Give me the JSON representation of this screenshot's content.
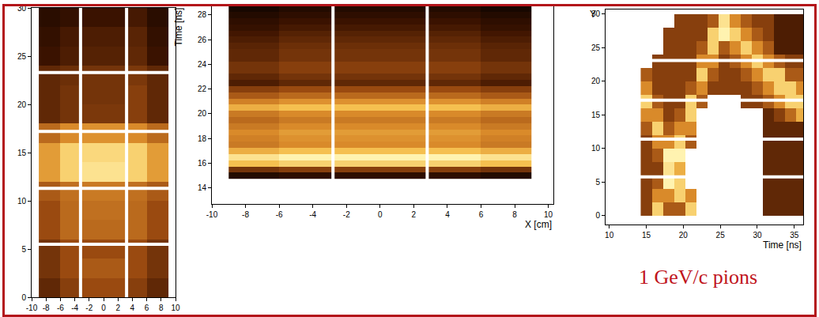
{
  "chart_data": [
    {
      "type": "heatmap",
      "x": [
        -7.5,
        -4.5,
        -1.5,
        1.5,
        4.5,
        7.5
      ],
      "y": [
        1,
        3,
        5,
        7,
        9,
        11,
        13,
        15,
        17,
        19,
        21,
        23,
        25,
        27,
        29
      ],
      "z": [
        [
          0.35,
          0.45,
          0.5,
          0.5,
          0.45,
          0.35
        ],
        [
          0.4,
          0.5,
          0.55,
          0.55,
          0.5,
          0.4
        ],
        [
          0.4,
          0.5,
          0.5,
          0.5,
          0.5,
          0.4
        ],
        [
          0.5,
          0.6,
          0.6,
          0.6,
          0.6,
          0.5
        ],
        [
          0.5,
          0.6,
          0.62,
          0.62,
          0.6,
          0.5
        ],
        [
          0.55,
          0.62,
          0.65,
          0.65,
          0.62,
          0.55
        ],
        [
          0.75,
          0.9,
          0.95,
          0.95,
          0.9,
          0.75
        ],
        [
          0.75,
          0.9,
          0.92,
          0.92,
          0.9,
          0.75
        ],
        [
          0.6,
          0.7,
          0.72,
          0.72,
          0.7,
          0.6
        ],
        [
          0.35,
          0.4,
          0.42,
          0.42,
          0.45,
          0.35
        ],
        [
          0.35,
          0.4,
          0.4,
          0.4,
          0.45,
          0.35
        ],
        [
          0.35,
          0.38,
          0.4,
          0.4,
          0.42,
          0.35
        ],
        [
          0.25,
          0.3,
          0.32,
          0.32,
          0.35,
          0.25
        ],
        [
          0.22,
          0.28,
          0.3,
          0.3,
          0.33,
          0.22
        ],
        [
          0.18,
          0.22,
          0.25,
          0.25,
          0.28,
          0.18
        ]
      ],
      "zlim": [
        0,
        1
      ],
      "xlim": [
        -10,
        10
      ],
      "xticks": [
        -10,
        -8,
        -6,
        -4,
        -2,
        0,
        2,
        4,
        6,
        8,
        10
      ],
      "ylim": [
        0,
        30
      ],
      "yticks": [
        0,
        5,
        10,
        15,
        20,
        25,
        30
      ],
      "grid": false,
      "dividers": {
        "x": [
          -3.2,
          3.2
        ],
        "y": [
          5.5,
          11.3,
          17.2,
          23.3
        ]
      }
    },
    {
      "type": "heatmap",
      "x_label": "X [cm]",
      "y_label": "Time [ns]",
      "x": [
        -7.5,
        -4.5,
        -1.5,
        1.5,
        4.5,
        7.5
      ],
      "y": [
        15,
        15.5,
        16,
        16.5,
        17,
        17.5,
        18,
        18.5,
        19,
        19.5,
        20,
        20.5,
        21,
        21.5,
        22,
        22.5,
        23,
        23.5,
        24,
        24.5,
        25,
        25.5,
        26,
        26.5,
        27,
        27.5,
        28,
        28.5
      ],
      "z": [
        [
          0.15,
          0.2,
          0.2,
          0.2,
          0.2,
          0.15
        ],
        [
          0.4,
          0.45,
          0.45,
          0.45,
          0.45,
          0.4
        ],
        [
          0.85,
          0.9,
          0.9,
          0.9,
          0.9,
          0.85
        ],
        [
          0.95,
          1.0,
          1.0,
          1.0,
          1.0,
          0.95
        ],
        [
          0.8,
          0.85,
          0.85,
          0.85,
          0.85,
          0.8
        ],
        [
          0.65,
          0.7,
          0.7,
          0.7,
          0.7,
          0.65
        ],
        [
          0.67,
          0.72,
          0.72,
          0.72,
          0.72,
          0.67
        ],
        [
          0.7,
          0.75,
          0.75,
          0.75,
          0.75,
          0.7
        ],
        [
          0.65,
          0.7,
          0.7,
          0.7,
          0.7,
          0.65
        ],
        [
          0.6,
          0.65,
          0.65,
          0.65,
          0.65,
          0.6
        ],
        [
          0.65,
          0.7,
          0.7,
          0.7,
          0.7,
          0.65
        ],
        [
          0.8,
          0.85,
          0.85,
          0.85,
          0.85,
          0.8
        ],
        [
          0.67,
          0.72,
          0.72,
          0.72,
          0.72,
          0.67
        ],
        [
          0.55,
          0.6,
          0.6,
          0.6,
          0.6,
          0.55
        ],
        [
          0.45,
          0.5,
          0.5,
          0.5,
          0.5,
          0.45
        ],
        [
          0.3,
          0.35,
          0.35,
          0.35,
          0.35,
          0.3
        ],
        [
          0.35,
          0.4,
          0.4,
          0.4,
          0.4,
          0.35
        ],
        [
          0.4,
          0.45,
          0.45,
          0.45,
          0.45,
          0.4
        ],
        [
          0.4,
          0.45,
          0.45,
          0.45,
          0.45,
          0.4
        ],
        [
          0.35,
          0.4,
          0.4,
          0.4,
          0.4,
          0.35
        ],
        [
          0.35,
          0.4,
          0.4,
          0.4,
          0.4,
          0.35
        ],
        [
          0.33,
          0.38,
          0.38,
          0.38,
          0.38,
          0.33
        ],
        [
          0.3,
          0.35,
          0.35,
          0.35,
          0.35,
          0.3
        ],
        [
          0.27,
          0.32,
          0.32,
          0.32,
          0.32,
          0.27
        ],
        [
          0.23,
          0.28,
          0.28,
          0.28,
          0.28,
          0.23
        ],
        [
          0.2,
          0.25,
          0.25,
          0.25,
          0.25,
          0.2
        ],
        [
          0.15,
          0.2,
          0.2,
          0.2,
          0.2,
          0.15
        ],
        [
          0.1,
          0.15,
          0.15,
          0.15,
          0.15,
          0.1
        ]
      ],
      "zlim": [
        0,
        1
      ],
      "xlim": [
        -10,
        10.3
      ],
      "xticks": [
        -10,
        -8,
        -6,
        -4,
        -2,
        0,
        2,
        4,
        6,
        8,
        10
      ],
      "ylim": [
        12.7,
        28.7
      ],
      "yticks": [
        14,
        16,
        18,
        20,
        22,
        24,
        26,
        28
      ],
      "grid": false,
      "dividers": {
        "x": [
          -2.8,
          2.8
        ]
      }
    },
    {
      "type": "heatmap",
      "x_label": "Time [ns]",
      "y_label": "Y",
      "annotations": [
        "1 GeV/c pions"
      ],
      "x": [
        15,
        16.5,
        18,
        19.5,
        21,
        22.5,
        24,
        25.5,
        27,
        28.5,
        30,
        31.5,
        33,
        34.5,
        36
      ],
      "y": [
        1,
        3,
        5,
        7,
        9,
        11,
        13,
        15,
        17,
        19,
        21,
        23,
        25,
        27,
        29
      ],
      "z": [
        [
          0.45,
          0.9,
          0.55,
          0.55,
          0.9,
          null,
          null,
          null,
          null,
          null,
          null,
          0.35,
          0.35,
          0.35,
          0.35
        ],
        [
          0.45,
          0.7,
          0.7,
          0.9,
          0.7,
          null,
          null,
          null,
          null,
          null,
          null,
          0.35,
          0.35,
          0.35,
          0.35
        ],
        [
          0.45,
          0.55,
          1.0,
          0.9,
          null,
          null,
          null,
          null,
          null,
          null,
          null,
          0.35,
          0.35,
          0.35,
          0.35
        ],
        [
          0.45,
          0.45,
          0.95,
          0.8,
          null,
          null,
          null,
          null,
          null,
          null,
          null,
          0.35,
          0.35,
          0.35,
          0.35
        ],
        [
          0.45,
          0.55,
          1.0,
          1.0,
          null,
          null,
          null,
          null,
          null,
          null,
          null,
          0.35,
          0.35,
          0.35,
          0.35
        ],
        [
          0.45,
          0.7,
          0.7,
          0.9,
          0.55,
          null,
          null,
          null,
          null,
          null,
          null,
          0.35,
          0.35,
          0.35,
          0.35
        ],
        [
          0.55,
          0.9,
          0.55,
          0.7,
          0.7,
          null,
          null,
          null,
          null,
          null,
          null,
          0.35,
          0.35,
          0.35,
          0.35
        ],
        [
          0.7,
          0.7,
          0.45,
          0.55,
          0.9,
          null,
          null,
          null,
          null,
          null,
          null,
          0.35,
          0.45,
          0.6,
          0.8
        ],
        [
          0.9,
          0.55,
          0.45,
          0.45,
          0.9,
          0.55,
          null,
          null,
          null,
          0.45,
          0.45,
          0.55,
          0.7,
          0.9,
          0.9
        ],
        [
          0.7,
          0.45,
          0.45,
          0.45,
          0.55,
          0.7,
          0.45,
          0.45,
          0.45,
          0.45,
          0.55,
          0.7,
          0.9,
          0.9,
          0.7
        ],
        [
          0.55,
          0.45,
          0.45,
          0.45,
          0.45,
          0.9,
          0.55,
          0.45,
          0.45,
          0.55,
          0.7,
          0.9,
          0.9,
          0.55,
          0.55
        ],
        [
          null,
          0.45,
          0.45,
          0.45,
          0.45,
          0.7,
          0.7,
          0.45,
          0.55,
          0.7,
          0.9,
          0.7,
          0.55,
          0.45,
          0.45
        ],
        [
          null,
          null,
          0.45,
          0.45,
          0.45,
          0.55,
          0.9,
          0.55,
          0.7,
          0.9,
          0.7,
          0.55,
          0.3,
          0.3,
          0.3
        ],
        [
          null,
          null,
          0.45,
          0.45,
          0.45,
          0.45,
          0.9,
          1.0,
          0.9,
          0.7,
          0.55,
          0.45,
          0.3,
          0.3,
          0.3
        ],
        [
          null,
          null,
          null,
          0.45,
          0.45,
          0.45,
          0.55,
          0.95,
          0.7,
          0.55,
          0.45,
          0.45,
          0.3,
          0.3,
          0.3
        ]
      ],
      "zlim": [
        0,
        1
      ],
      "xlim": [
        9.5,
        36.2
      ],
      "xticks": [
        10,
        15,
        20,
        25,
        30,
        35
      ],
      "ylim": [
        -1.3,
        30.7
      ],
      "yticks": [
        0,
        5,
        10,
        15,
        20,
        25,
        30
      ],
      "grid": false,
      "dividers": {
        "y": [
          5.8,
          11.4,
          17.2,
          23.1
        ]
      }
    }
  ]
}
